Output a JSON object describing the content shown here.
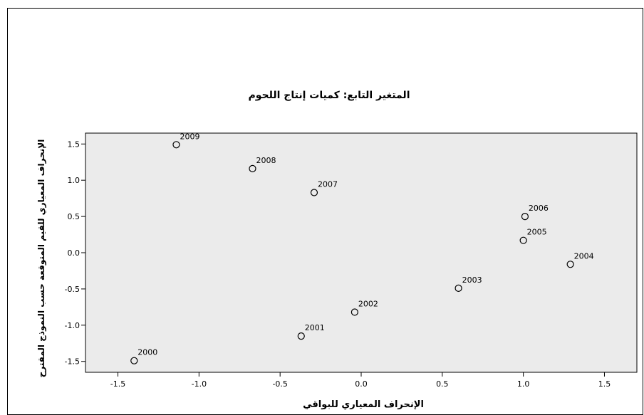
{
  "chart_data": {
    "type": "scatter",
    "title": "المتغير التابع: كميات إنتاج اللحوم",
    "xlabel": "الإنحراف المعياري للبواقي",
    "ylabel": "الإنحراف المعياري للقيم المتوقعة حسب النموذج المقترح",
    "xlim": [
      -1.7,
      1.7
    ],
    "ylim": [
      -1.65,
      1.65
    ],
    "x_ticks": [
      -1.5,
      -1.0,
      -0.5,
      0.0,
      0.5,
      1.0,
      1.5
    ],
    "x_tick_labels": [
      "-1.5",
      "-1.0",
      "-0.5",
      "0.0",
      "0.5",
      "1.0",
      "1.5"
    ],
    "y_ticks": [
      1.5,
      1.0,
      0.5,
      0.0,
      -0.5,
      -1.0,
      -1.5
    ],
    "y_tick_labels": [
      "1.5",
      "1.0",
      "0.5",
      "0.0",
      "-0.5",
      "-1.0",
      "-1.5"
    ],
    "grid": false,
    "points": [
      {
        "label": "2000",
        "x": -1.4,
        "y": -1.49
      },
      {
        "label": "2001",
        "x": -0.37,
        "y": -1.15
      },
      {
        "label": "2002",
        "x": -0.04,
        "y": -0.82
      },
      {
        "label": "2003",
        "x": 0.6,
        "y": -0.49
      },
      {
        "label": "2004",
        "x": 1.29,
        "y": -0.16
      },
      {
        "label": "2005",
        "x": 1.0,
        "y": 0.17
      },
      {
        "label": "2006",
        "x": 1.01,
        "y": 0.5
      },
      {
        "label": "2007",
        "x": -0.29,
        "y": 0.83
      },
      {
        "label": "2008",
        "x": -0.67,
        "y": 1.16
      },
      {
        "label": "2009",
        "x": -1.14,
        "y": 1.49
      }
    ],
    "colors": {
      "plot_background": "#ebebeb",
      "marker_stroke": "#000000",
      "axis": "#000000"
    }
  }
}
